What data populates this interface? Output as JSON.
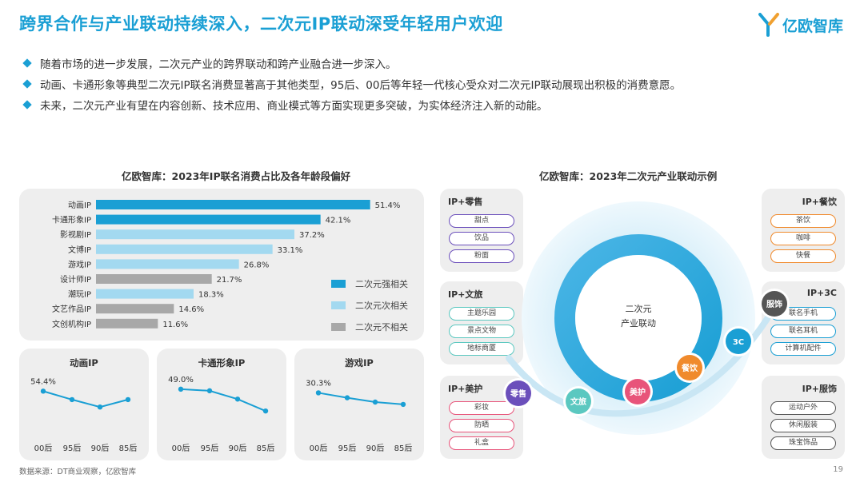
{
  "header": {
    "title": "跨界合作与产业联动持续深入，二次元IP联动深受年轻用户欢迎",
    "logo_text": "亿欧智库"
  },
  "bullets": [
    "随着市场的进一步发展，二次元产业的跨界联动和跨产业融合进一步深入。",
    "动画、卡通形象等典型二次元IP联名消费显著高于其他类型，95后、00后等年轻一代核心受众对二次元IP联动展现出积极的消费意愿。",
    "未来，二次元产业有望在内容创新、技术应用、商业模式等方面实现更多突破，为实体经济注入新的动能。"
  ],
  "left_title": "亿欧智库：2023年IP联名消费占比及各年龄段偏好",
  "right_title": "亿欧智库：2023年二次元产业联动示例",
  "colors": {
    "strong": "#1a9fd4",
    "secondary": "#a3d9f0",
    "unrelated": "#a8a8a8",
    "accent": "#1a9fd4"
  },
  "chart_data": [
    {
      "type": "bar",
      "orientation": "horizontal",
      "categories": [
        "动画IP",
        "卡通形象IP",
        "影视剧IP",
        "文博IP",
        "游戏IP",
        "设计师IP",
        "潮玩IP",
        "文艺作品IP",
        "文创机构IP"
      ],
      "values": [
        51.4,
        42.1,
        37.2,
        33.1,
        26.8,
        21.7,
        18.3,
        14.6,
        11.6
      ],
      "labels": [
        "51.4%",
        "42.1%",
        "37.2%",
        "33.1%",
        "26.8%",
        "21.7%",
        "18.3%",
        "14.6%",
        "11.6%"
      ],
      "groups": [
        "strong",
        "strong",
        "secondary",
        "secondary",
        "secondary",
        "unrelated",
        "secondary",
        "unrelated",
        "unrelated"
      ],
      "legend": [
        {
          "key": "strong",
          "name": "二次元强相关"
        },
        {
          "key": "secondary",
          "name": "二次元次相关"
        },
        {
          "key": "unrelated",
          "name": "二次元不相关"
        }
      ],
      "xlim": [
        0,
        60
      ]
    },
    {
      "type": "line",
      "title": "动画IP",
      "categories": [
        "00后",
        "95后",
        "90后",
        "85后"
      ],
      "values": [
        54.4,
        51.0,
        48.0,
        51.0
      ],
      "first_label": "54.4%",
      "ylim": [
        40,
        60
      ]
    },
    {
      "type": "line",
      "title": "卡通形象IP",
      "categories": [
        "00后",
        "95后",
        "90后",
        "85后"
      ],
      "values": [
        49.0,
        48.2,
        44.0,
        38.0
      ],
      "first_label": "49.0%",
      "ylim": [
        30,
        55
      ]
    },
    {
      "type": "line",
      "title": "游戏IP",
      "categories": [
        "00后",
        "95后",
        "90后",
        "85后"
      ],
      "values": [
        30.3,
        28.8,
        27.5,
        26.8
      ],
      "first_label": "30.3%",
      "ylim": [
        20,
        35
      ]
    }
  ],
  "diagram": {
    "center_line1": "二次元",
    "center_line2": "产业联动",
    "nodes": [
      {
        "label": "零售",
        "color": "#6b4fbb"
      },
      {
        "label": "文旅",
        "color": "#5bc8c0"
      },
      {
        "label": "美护",
        "color": "#e8547a"
      },
      {
        "label": "餐饮",
        "color": "#f08a2c"
      },
      {
        "label": "3C",
        "color": "#1a9fd4"
      },
      {
        "label": "服饰",
        "color": "#555555"
      }
    ],
    "categories": [
      {
        "title": "IP+零售",
        "color": "#6b4fbb",
        "items": [
          "甜点",
          "饮品",
          "粉面"
        ]
      },
      {
        "title": "IP+文旅",
        "color": "#5bc8c0",
        "items": [
          "主题乐园",
          "景点文物",
          "地标商厦"
        ]
      },
      {
        "title": "IP+美护",
        "color": "#e8547a",
        "items": [
          "彩妆",
          "防晒",
          "礼盒"
        ]
      },
      {
        "title": "IP+餐饮",
        "color": "#f08a2c",
        "items": [
          "茶饮",
          "咖啡",
          "快餐"
        ]
      },
      {
        "title": "IP+3C",
        "color": "#1a9fd4",
        "items": [
          "联名手机",
          "联名耳机",
          "计算机配件"
        ]
      },
      {
        "title": "IP+服饰",
        "color": "#555555",
        "items": [
          "运动户外",
          "休闲服装",
          "珠宝饰品"
        ]
      }
    ]
  },
  "footer": {
    "source": "数据来源：DT商业观察，亿欧智库",
    "page": "19"
  }
}
